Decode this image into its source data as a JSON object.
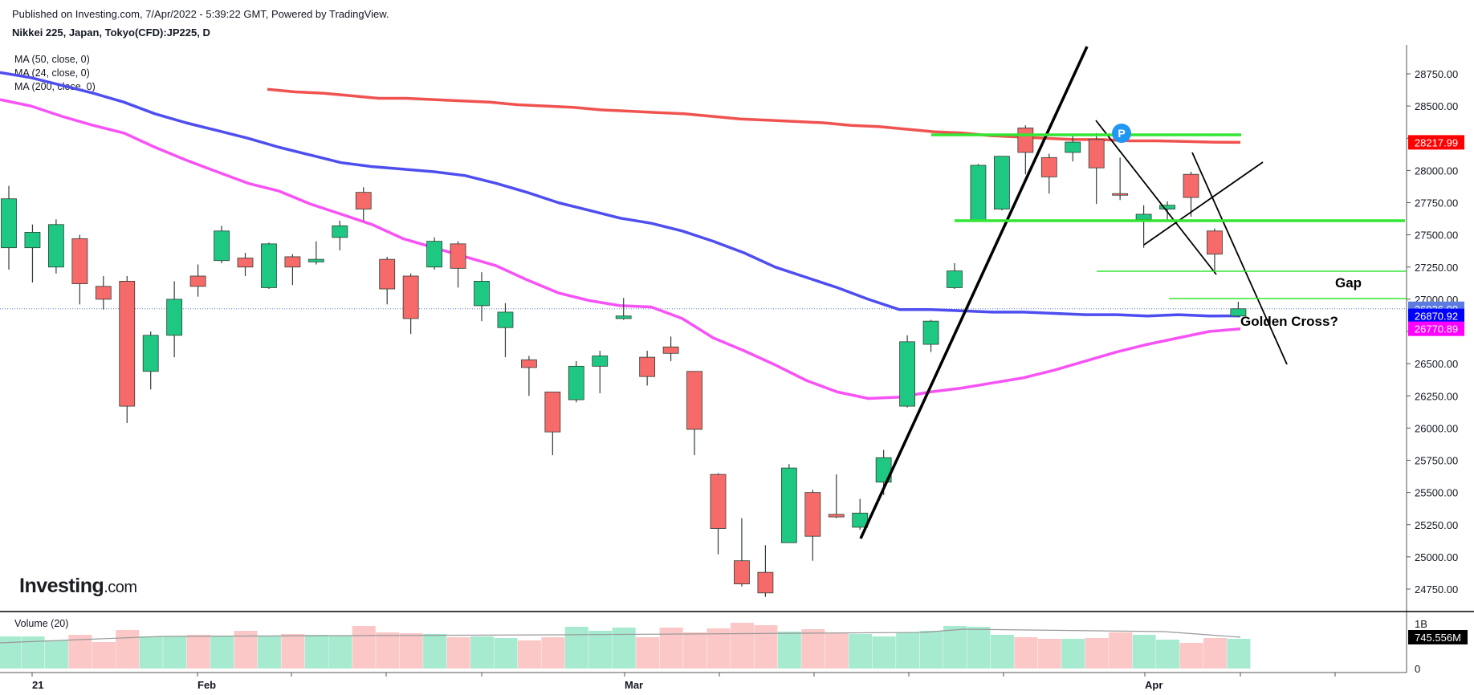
{
  "header": {
    "published": "Published on Investing.com, 7/Apr/2022 - 5:39:22 GMT, Powered by TradingView.",
    "symbol": "Nikkei 225, Japan, Tokyo(CFD):JP225, D"
  },
  "ma_labels": [
    "MA (50, close, 0)",
    "MA (24, close, 0)",
    "MA (200, close, 0)"
  ],
  "volume_label": "Volume (20)",
  "logo": {
    "main": "Investing",
    "suffix": ".com"
  },
  "chart_data": {
    "type": "candlestick",
    "y_ticks": [
      "28750.00",
      "28500.00",
      "28250.00",
      "28000.00",
      "27750.00",
      "27500.00",
      "27250.00",
      "27000.00",
      "26750.00",
      "26500.00",
      "26250.00",
      "26000.00",
      "25750.00",
      "25500.00",
      "25250.00",
      "25000.00",
      "24750.00"
    ],
    "x_ticks": [
      "21",
      "Feb",
      "Mar",
      "Apr"
    ],
    "volume_ticks": [
      "1B",
      "0"
    ],
    "price_badges": [
      {
        "label": "28217.99",
        "value": 28217.99,
        "color": "#ff0000"
      },
      {
        "label": "26926.00",
        "value": 26926.0,
        "color": "#5b7be0"
      },
      {
        "label": "26870.92",
        "value": 26870.92,
        "color": "#0000ff"
      },
      {
        "label": "26770.89",
        "value": 26770.89,
        "color": "#ff00ff"
      }
    ],
    "volume_badge": {
      "label": "745.556M",
      "color": "#000000"
    },
    "annotations": [
      "Gap",
      "Golden Cross?"
    ],
    "marker": "P",
    "candles": [
      {
        "d": "Jan 20",
        "o": 27400,
        "h": 27880,
        "l": 27230,
        "c": 27780
      },
      {
        "d": "Jan 21",
        "o": 27400,
        "h": 27580,
        "l": 27130,
        "c": 27520
      },
      {
        "d": "Jan 24",
        "o": 27250,
        "h": 27620,
        "l": 27200,
        "c": 27580
      },
      {
        "d": "Jan 25",
        "o": 27470,
        "h": 27500,
        "l": 26960,
        "c": 27120
      },
      {
        "d": "Jan 26",
        "o": 27100,
        "h": 27180,
        "l": 26920,
        "c": 27000
      },
      {
        "d": "Jan 27",
        "o": 27140,
        "h": 27180,
        "l": 26040,
        "c": 26170
      },
      {
        "d": "Jan 28",
        "o": 26440,
        "h": 26750,
        "l": 26300,
        "c": 26720
      },
      {
        "d": "Jan 31",
        "o": 26720,
        "h": 27140,
        "l": 26550,
        "c": 27000
      },
      {
        "d": "Feb 1",
        "o": 27180,
        "h": 27270,
        "l": 27020,
        "c": 27100
      },
      {
        "d": "Feb 2",
        "o": 27300,
        "h": 27570,
        "l": 27280,
        "c": 27530
      },
      {
        "d": "Feb 3",
        "o": 27320,
        "h": 27360,
        "l": 27180,
        "c": 27250
      },
      {
        "d": "Feb 4",
        "o": 27090,
        "h": 27440,
        "l": 27080,
        "c": 27430
      },
      {
        "d": "Feb 7",
        "o": 27330,
        "h": 27350,
        "l": 27110,
        "c": 27250
      },
      {
        "d": "Feb 8",
        "o": 27290,
        "h": 27450,
        "l": 27270,
        "c": 27310
      },
      {
        "d": "Feb 9",
        "o": 27480,
        "h": 27610,
        "l": 27380,
        "c": 27570
      },
      {
        "d": "Feb 10",
        "o": 27830,
        "h": 27870,
        "l": 27610,
        "c": 27700
      },
      {
        "d": "Feb 14",
        "o": 27310,
        "h": 27330,
        "l": 26960,
        "c": 27080
      },
      {
        "d": "Feb 15",
        "o": 27180,
        "h": 27200,
        "l": 26730,
        "c": 26850
      },
      {
        "d": "Feb 16",
        "o": 27250,
        "h": 27480,
        "l": 27230,
        "c": 27450
      },
      {
        "d": "Feb 17",
        "o": 27430,
        "h": 27450,
        "l": 27090,
        "c": 27240
      },
      {
        "d": "Feb 18",
        "o": 26950,
        "h": 27210,
        "l": 26830,
        "c": 27140
      },
      {
        "d": "Feb 21",
        "o": 26780,
        "h": 26970,
        "l": 26550,
        "c": 26900
      },
      {
        "d": "Feb 22",
        "o": 26530,
        "h": 26560,
        "l": 26250,
        "c": 26470
      },
      {
        "d": "Feb 24",
        "o": 26280,
        "h": 26280,
        "l": 25790,
        "c": 25970
      },
      {
        "d": "Feb 25",
        "o": 26220,
        "h": 26520,
        "l": 26200,
        "c": 26480
      },
      {
        "d": "Feb 28",
        "o": 26480,
        "h": 26600,
        "l": 26270,
        "c": 26560
      },
      {
        "d": "Mar 1",
        "o": 26850,
        "h": 27010,
        "l": 26840,
        "c": 26870
      },
      {
        "d": "Mar 2",
        "o": 26550,
        "h": 26600,
        "l": 26330,
        "c": 26400
      },
      {
        "d": "Mar 3",
        "o": 26630,
        "h": 26710,
        "l": 26520,
        "c": 26580
      },
      {
        "d": "Mar 4",
        "o": 26440,
        "h": 26440,
        "l": 25790,
        "c": 25990
      },
      {
        "d": "Mar 7",
        "o": 25640,
        "h": 25650,
        "l": 25020,
        "c": 25220
      },
      {
        "d": "Mar 8",
        "o": 24970,
        "h": 25300,
        "l": 24770,
        "c": 24790
      },
      {
        "d": "Mar 9",
        "o": 24880,
        "h": 25090,
        "l": 24690,
        "c": 24720
      },
      {
        "d": "Mar 10",
        "o": 25110,
        "h": 25720,
        "l": 25110,
        "c": 25690
      },
      {
        "d": "Mar 11",
        "o": 25500,
        "h": 25520,
        "l": 24970,
        "c": 25160
      },
      {
        "d": "Mar 14",
        "o": 25330,
        "h": 25640,
        "l": 25300,
        "c": 25310
      },
      {
        "d": "Mar 15",
        "o": 25230,
        "h": 25450,
        "l": 25210,
        "c": 25340
      },
      {
        "d": "Mar 16",
        "o": 25580,
        "h": 25830,
        "l": 25480,
        "c": 25770
      },
      {
        "d": "Mar 17",
        "o": 26170,
        "h": 26720,
        "l": 26160,
        "c": 26670
      },
      {
        "d": "Mar 18",
        "o": 26650,
        "h": 26840,
        "l": 26590,
        "c": 26830
      },
      {
        "d": "Mar 22",
        "o": 27090,
        "h": 27280,
        "l": 27080,
        "c": 27220
      },
      {
        "d": "Mar 23",
        "o": 27610,
        "h": 28050,
        "l": 27610,
        "c": 28040
      },
      {
        "d": "Mar 24",
        "o": 27700,
        "h": 28110,
        "l": 27690,
        "c": 28110
      },
      {
        "d": "Mar 25",
        "o": 28330,
        "h": 28350,
        "l": 27970,
        "c": 28140
      },
      {
        "d": "Mar 28",
        "o": 28100,
        "h": 28130,
        "l": 27820,
        "c": 27950
      },
      {
        "d": "Mar 29",
        "o": 28140,
        "h": 28270,
        "l": 28070,
        "c": 28220
      },
      {
        "d": "Mar 30",
        "o": 28240,
        "h": 28290,
        "l": 27740,
        "c": 28020
      },
      {
        "d": "Mar 31",
        "o": 27820,
        "h": 28100,
        "l": 27770,
        "c": 27810
      },
      {
        "d": "Apr 1",
        "o": 27620,
        "h": 27730,
        "l": 27400,
        "c": 27660
      },
      {
        "d": "Apr 4",
        "o": 27700,
        "h": 27760,
        "l": 27620,
        "c": 27730
      },
      {
        "d": "Apr 5",
        "o": 27970,
        "h": 27990,
        "l": 27640,
        "c": 27790
      },
      {
        "d": "Apr 6",
        "o": 27530,
        "h": 27550,
        "l": 27210,
        "c": 27350
      },
      {
        "d": "Apr 7",
        "o": 26870,
        "h": 26980,
        "l": 26860,
        "c": 26926
      }
    ],
    "ma200": [
      28630,
      28610,
      28600,
      28580,
      28560,
      28560,
      28550,
      28540,
      28530,
      28510,
      28500,
      28490,
      28470,
      28460,
      28450,
      28440,
      28420,
      28400,
      28390,
      28380,
      28370,
      28350,
      28340,
      28320,
      28300,
      28290,
      28270,
      28260,
      28250,
      28240,
      28240,
      28230,
      28230,
      28225,
      28220,
      28218
    ],
    "ma50": [
      28760,
      28720,
      28660,
      28600,
      28530,
      28440,
      28370,
      28310,
      28250,
      28180,
      28120,
      28060,
      28030,
      28010,
      27990,
      27960,
      27900,
      27830,
      27750,
      27690,
      27630,
      27590,
      27530,
      27450,
      27360,
      27250,
      27170,
      27090,
      27000,
      26920,
      26920,
      26910,
      26900,
      26900,
      26890,
      26880,
      26880,
      26870,
      26880,
      26870,
      26871
    ],
    "ma24": [
      28550,
      28500,
      28420,
      28350,
      28290,
      28180,
      28080,
      27990,
      27900,
      27840,
      27740,
      27660,
      27580,
      27470,
      27400,
      27330,
      27260,
      27150,
      27050,
      26990,
      26950,
      26940,
      26850,
      26700,
      26600,
      26490,
      26370,
      26280,
      26230,
      26240,
      26280,
      26310,
      26350,
      26390,
      26450,
      26520,
      26590,
      26650,
      26700,
      26750,
      26770
    ]
  }
}
